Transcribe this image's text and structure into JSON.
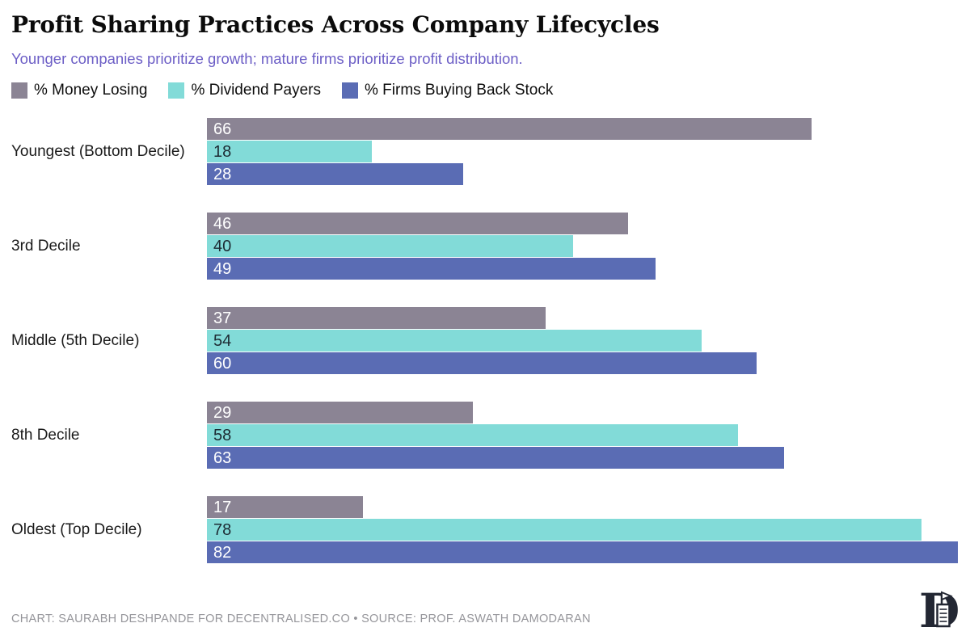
{
  "title": "Profit Sharing Practices Across Company Lifecycles",
  "subtitle": "Younger companies prioritize growth; mature firms prioritize profit distribution.",
  "legend": [
    {
      "label": "% Money Losing",
      "color": "#8b8494"
    },
    {
      "label": "% Dividend Payers",
      "color": "#82dbd8"
    },
    {
      "label": "% Firms Buying Back Stock",
      "color": "#5a6cb4"
    }
  ],
  "chart_data": {
    "type": "bar",
    "orientation": "horizontal",
    "title": "Profit Sharing Practices Across Company Lifecycles",
    "categories": [
      "Youngest (Bottom Decile)",
      "3rd Decile",
      "Middle (5th Decile)",
      "8th Decile",
      "Oldest (Top Decile)"
    ],
    "series": [
      {
        "name": "% Money Losing",
        "color": "#8b8494",
        "value_label_color": "#ffffff",
        "values": [
          66,
          46,
          37,
          29,
          17
        ]
      },
      {
        "name": "% Dividend Payers",
        "color": "#82dbd8",
        "value_label_color": "#1d2b33",
        "values": [
          18,
          40,
          54,
          58,
          78
        ]
      },
      {
        "name": "% Firms Buying Back Stock",
        "color": "#5a6cb4",
        "value_label_color": "#ffffff",
        "values": [
          28,
          49,
          60,
          63,
          82
        ]
      }
    ],
    "xlim": [
      0,
      83.3
    ],
    "value_labels": "inside-start",
    "grid": false,
    "legend_position": "top"
  },
  "footer": {
    "credit": "CHART: SAURABH DESHPANDE FOR DECENTRALISED.CO • SOURCE: PROF. ASWATH DAMODARAN"
  },
  "colors": {
    "background": "#ffffff",
    "subtitle": "#6c5ec6",
    "footer_text": "#95959a",
    "logo": "#232733"
  }
}
